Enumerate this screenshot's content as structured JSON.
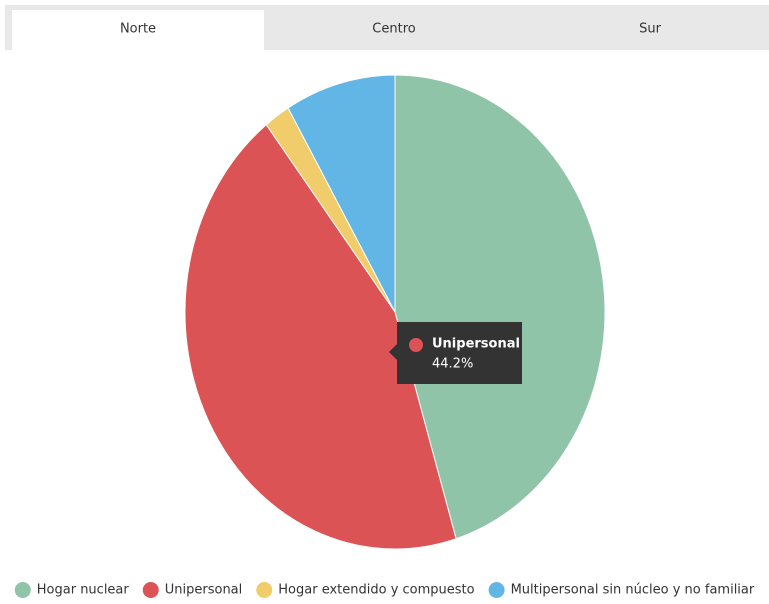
{
  "tabs": [
    "Norte",
    "Centro",
    "Sur"
  ],
  "active_tab": "Norte",
  "chart_data": {
    "type": "pie",
    "categories": [
      "Hogar nuclear",
      "Unipersonal",
      "Hogar extendido y compuesto",
      "Multipersonal sin núcleo y no familiar"
    ],
    "values": [
      45.3,
      44.2,
      2,
      8.5
    ],
    "colors": [
      "#8fc4a8",
      "#dc5355",
      "#f0cc6b",
      "#62b6e6"
    ],
    "tooltip": {
      "name": "Unipersonal",
      "value_label": "44.2%"
    }
  }
}
